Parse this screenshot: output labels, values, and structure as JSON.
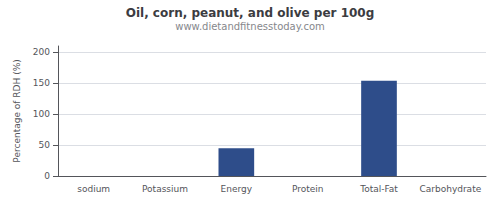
{
  "chart_data": {
    "type": "bar",
    "title": "Oil, corn, peanut, and olive per 100g",
    "subtitle": "www.dietandfitnesstoday.com",
    "categories": [
      "sodium",
      "Potassium",
      "Energy",
      "Protein",
      "Total-Fat",
      "Carbohydrate"
    ],
    "values": [
      0,
      0,
      45,
      0,
      154,
      0
    ],
    "color": "#2e4d8a",
    "ylabel": "Percentage of RDH (%)",
    "ylim": [
      0,
      210
    ],
    "yticks": [
      0,
      50,
      100,
      150,
      200
    ],
    "grid": true
  }
}
